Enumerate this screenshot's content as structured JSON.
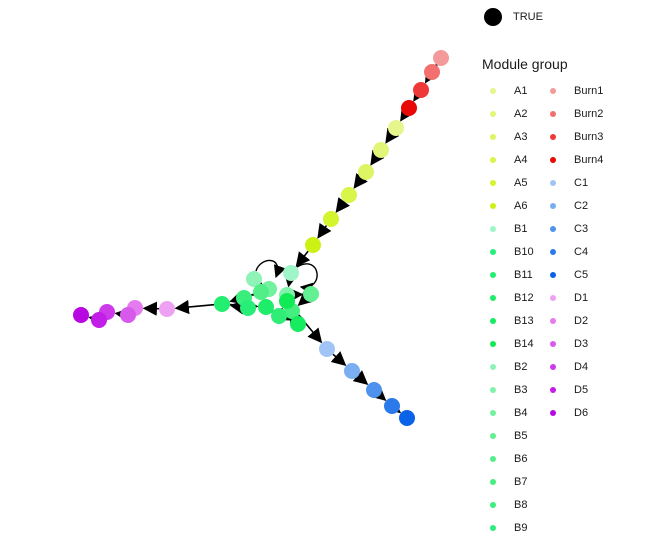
{
  "size_legend": {
    "label": "TRUE",
    "color": "#000000"
  },
  "legend": {
    "title": "Module group",
    "items": [
      {
        "label": "A1",
        "color": "#e6f58c"
      },
      {
        "label": "A2",
        "color": "#e2f578"
      },
      {
        "label": "A3",
        "color": "#ddf565"
      },
      {
        "label": "A4",
        "color": "#d8f54a"
      },
      {
        "label": "A5",
        "color": "#d3f52e"
      },
      {
        "label": "A6",
        "color": "#cbf214"
      },
      {
        "label": "B1",
        "color": "#9ef5c8"
      },
      {
        "label": "B10",
        "color": "#28ed78"
      },
      {
        "label": "B11",
        "color": "#22ee70"
      },
      {
        "label": "B12",
        "color": "#1ded68"
      },
      {
        "label": "B13",
        "color": "#17ec60"
      },
      {
        "label": "B14",
        "color": "#10eb55"
      },
      {
        "label": "B2",
        "color": "#8ff3b8"
      },
      {
        "label": "B3",
        "color": "#80f2aa"
      },
      {
        "label": "B4",
        "color": "#72f29e"
      },
      {
        "label": "B5",
        "color": "#62f092"
      },
      {
        "label": "B6",
        "color": "#52ef88"
      },
      {
        "label": "B7",
        "color": "#45ee80"
      },
      {
        "label": "B8",
        "color": "#3aee7c"
      },
      {
        "label": "B9",
        "color": "#30ed78"
      },
      {
        "label": "Burn1",
        "color": "#f59a9a"
      },
      {
        "label": "Burn2",
        "color": "#f27070"
      },
      {
        "label": "Burn3",
        "color": "#ef3838"
      },
      {
        "label": "Burn4",
        "color": "#e80808"
      },
      {
        "label": "C1",
        "color": "#a0c4f5"
      },
      {
        "label": "C2",
        "color": "#7aaef2"
      },
      {
        "label": "C3",
        "color": "#4e92ee"
      },
      {
        "label": "C4",
        "color": "#2a7aeb"
      },
      {
        "label": "C5",
        "color": "#0a62e8"
      },
      {
        "label": "D1",
        "color": "#eea0f2"
      },
      {
        "label": "D2",
        "color": "#e47cef"
      },
      {
        "label": "D3",
        "color": "#d85aec"
      },
      {
        "label": "D4",
        "color": "#cc3aea"
      },
      {
        "label": "D5",
        "color": "#c21ee8"
      },
      {
        "label": "D6",
        "color": "#b808e2"
      }
    ]
  },
  "graph": {
    "nodes": [
      {
        "id": "Burn1",
        "group": "Burn1"
      },
      {
        "id": "Burn2",
        "group": "Burn2"
      },
      {
        "id": "Burn3",
        "group": "Burn3"
      },
      {
        "id": "Burn4",
        "group": "Burn4"
      },
      {
        "id": "A1",
        "group": "A1"
      },
      {
        "id": "A2",
        "group": "A2"
      },
      {
        "id": "A3",
        "group": "A3"
      },
      {
        "id": "A4",
        "group": "A4"
      },
      {
        "id": "A5",
        "group": "A5"
      },
      {
        "id": "A6",
        "group": "A6"
      },
      {
        "id": "B1",
        "group": "B1"
      },
      {
        "id": "B2",
        "group": "B2"
      },
      {
        "id": "B3",
        "group": "B3"
      },
      {
        "id": "B4",
        "group": "B4"
      },
      {
        "id": "B5",
        "group": "B5"
      },
      {
        "id": "B6",
        "group": "B6"
      },
      {
        "id": "B7",
        "group": "B7"
      },
      {
        "id": "B8",
        "group": "B8"
      },
      {
        "id": "B9",
        "group": "B9"
      },
      {
        "id": "B10",
        "group": "B10"
      },
      {
        "id": "B11",
        "group": "B11"
      },
      {
        "id": "B12",
        "group": "B12"
      },
      {
        "id": "B13",
        "group": "B13"
      },
      {
        "id": "B14",
        "group": "B14"
      },
      {
        "id": "C1",
        "group": "C1"
      },
      {
        "id": "C2",
        "group": "C2"
      },
      {
        "id": "C3",
        "group": "C3"
      },
      {
        "id": "C4",
        "group": "C4"
      },
      {
        "id": "C5",
        "group": "C5"
      },
      {
        "id": "D1",
        "group": "D1"
      },
      {
        "id": "D2",
        "group": "D2"
      },
      {
        "id": "D3",
        "group": "D3"
      },
      {
        "id": "D4",
        "group": "D4"
      },
      {
        "id": "D5",
        "group": "D5"
      },
      {
        "id": "D6",
        "group": "D6"
      }
    ],
    "edges": [
      [
        "Burn1",
        "Burn2"
      ],
      [
        "Burn2",
        "Burn3"
      ],
      [
        "Burn3",
        "Burn4"
      ],
      [
        "Burn4",
        "A1"
      ],
      [
        "A1",
        "A2"
      ],
      [
        "A2",
        "A3"
      ],
      [
        "A3",
        "A4"
      ],
      [
        "A4",
        "A5"
      ],
      [
        "A5",
        "A6"
      ],
      [
        "A6",
        "B1"
      ],
      [
        "B1",
        "B3"
      ],
      [
        "B3",
        "B5"
      ],
      [
        "B5",
        "B7"
      ],
      [
        "B7",
        "B9"
      ],
      [
        "B2",
        "B4"
      ],
      [
        "B4",
        "B6"
      ],
      [
        "B6",
        "B8"
      ],
      [
        "B8",
        "B10"
      ],
      [
        "B10",
        "B11"
      ],
      [
        "B11",
        "B12"
      ],
      [
        "B12",
        "B13"
      ],
      [
        "B13",
        "B14"
      ],
      [
        "B9",
        "B12"
      ],
      [
        "B6",
        "B11"
      ],
      [
        "B14",
        "C1"
      ],
      [
        "C1",
        "C2"
      ],
      [
        "C2",
        "C3"
      ],
      [
        "C3",
        "C4"
      ],
      [
        "C4",
        "C5"
      ],
      [
        "B11",
        "D1"
      ],
      [
        "D1",
        "D2"
      ],
      [
        "D2",
        "D3"
      ],
      [
        "D3",
        "D4"
      ],
      [
        "D4",
        "D5"
      ],
      [
        "D5",
        "D6"
      ]
    ],
    "loops": [
      "B1",
      "B2"
    ]
  }
}
